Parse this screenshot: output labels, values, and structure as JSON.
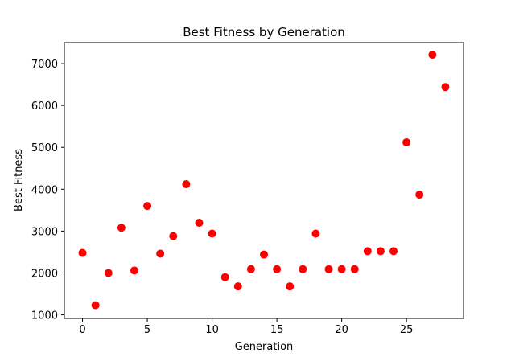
{
  "chart_data": {
    "type": "scatter",
    "title": "Best Fitness by Generation",
    "xlabel": "Generation",
    "ylabel": "Best Fitness",
    "xlim": [
      -1.4,
      29.4
    ],
    "ylim": [
      915,
      7500
    ],
    "xticks": [
      0,
      5,
      10,
      15,
      20,
      25
    ],
    "yticks": [
      1000,
      2000,
      3000,
      4000,
      5000,
      6000,
      7000
    ],
    "grid": false,
    "marker_color": "#ff0000",
    "x": [
      0,
      1,
      2,
      3,
      4,
      5,
      6,
      7,
      8,
      9,
      10,
      11,
      12,
      13,
      14,
      15,
      16,
      17,
      18,
      19,
      20,
      21,
      22,
      23,
      24,
      25,
      26,
      27,
      28
    ],
    "y": [
      2480,
      1230,
      2000,
      3080,
      2060,
      3600,
      2460,
      2880,
      4120,
      3200,
      2940,
      1900,
      1680,
      2090,
      2440,
      2090,
      1680,
      2090,
      2940,
      2090,
      2090,
      2090,
      2520,
      2520,
      2520,
      5120,
      3870,
      7210,
      6440
    ]
  }
}
